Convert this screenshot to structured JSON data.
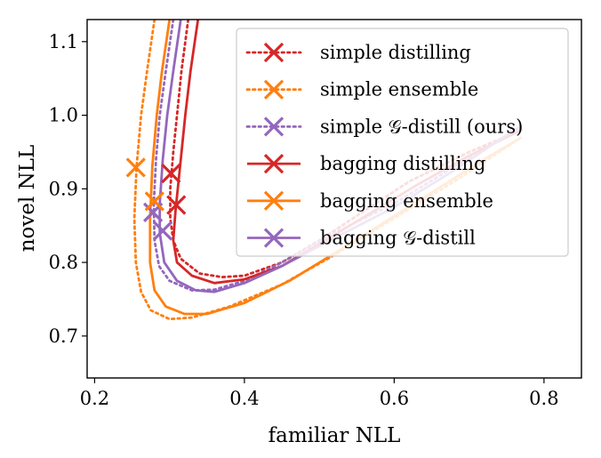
{
  "chart_data": {
    "type": "line",
    "title": "",
    "xlabel": "familiar NLL",
    "ylabel": "novel NLL",
    "xlim": [
      0.19,
      0.85
    ],
    "ylim": [
      0.643,
      1.13
    ],
    "xticks": [
      0.2,
      0.4,
      0.6,
      0.8
    ],
    "xtick_labels": [
      "0.2",
      "0.4",
      "0.6",
      "0.8"
    ],
    "yticks": [
      0.7,
      0.8,
      0.9,
      1.0,
      1.1
    ],
    "ytick_labels": [
      "0.7",
      "0.8",
      "0.9",
      "1.0",
      "1.1"
    ],
    "grid": false,
    "legend_position": "top-right",
    "series": [
      {
        "name": "simple distilling",
        "color": "#d62728",
        "dash": "dotted",
        "points": [
          [
            0.325,
            1.13
          ],
          [
            0.316,
            1.06
          ],
          [
            0.31,
            1.0
          ],
          [
            0.305,
            0.95
          ],
          [
            0.301,
            0.9
          ],
          [
            0.301,
            0.86
          ],
          [
            0.305,
            0.83
          ],
          [
            0.315,
            0.805
          ],
          [
            0.34,
            0.785
          ],
          [
            0.37,
            0.78
          ],
          [
            0.4,
            0.782
          ],
          [
            0.45,
            0.8
          ],
          [
            0.5,
            0.83
          ],
          [
            0.56,
            0.87
          ],
          [
            0.62,
            0.91
          ],
          [
            0.7,
            0.95
          ],
          [
            0.77,
            0.98
          ]
        ],
        "marker": [
          0.302,
          0.921
        ]
      },
      {
        "name": "simple ensemble",
        "color": "#ff7f0e",
        "dash": "dotted",
        "points": [
          [
            0.28,
            1.13
          ],
          [
            0.27,
            1.06
          ],
          [
            0.262,
            1.0
          ],
          [
            0.256,
            0.93
          ],
          [
            0.253,
            0.86
          ],
          [
            0.255,
            0.8
          ],
          [
            0.262,
            0.76
          ],
          [
            0.275,
            0.735
          ],
          [
            0.3,
            0.723
          ],
          [
            0.33,
            0.725
          ],
          [
            0.38,
            0.74
          ],
          [
            0.45,
            0.77
          ],
          [
            0.52,
            0.81
          ],
          [
            0.6,
            0.86
          ],
          [
            0.68,
            0.91
          ],
          [
            0.77,
            0.97
          ]
        ],
        "marker": [
          0.255,
          0.929
        ]
      },
      {
        "name": "simple 𝒢-distill (ours)",
        "color": "#9467bd",
        "dash": "dotted",
        "points": [
          [
            0.305,
            1.13
          ],
          [
            0.295,
            1.06
          ],
          [
            0.287,
            1.0
          ],
          [
            0.282,
            0.94
          ],
          [
            0.279,
            0.88
          ],
          [
            0.28,
            0.83
          ],
          [
            0.286,
            0.795
          ],
          [
            0.3,
            0.775
          ],
          [
            0.33,
            0.762
          ],
          [
            0.36,
            0.763
          ],
          [
            0.4,
            0.775
          ],
          [
            0.45,
            0.8
          ],
          [
            0.52,
            0.84
          ],
          [
            0.6,
            0.88
          ],
          [
            0.68,
            0.93
          ],
          [
            0.77,
            0.985
          ]
        ],
        "marker": [
          0.278,
          0.868
        ]
      },
      {
        "name": "bagging distilling",
        "color": "#d62728",
        "dash": "solid",
        "points": [
          [
            0.338,
            1.13
          ],
          [
            0.328,
            1.06
          ],
          [
            0.321,
            1.0
          ],
          [
            0.314,
            0.93
          ],
          [
            0.308,
            0.87
          ],
          [
            0.305,
            0.83
          ],
          [
            0.31,
            0.8
          ],
          [
            0.33,
            0.782
          ],
          [
            0.36,
            0.772
          ],
          [
            0.4,
            0.777
          ],
          [
            0.45,
            0.795
          ],
          [
            0.5,
            0.825
          ],
          [
            0.56,
            0.862
          ],
          [
            0.63,
            0.905
          ],
          [
            0.7,
            0.945
          ],
          [
            0.77,
            0.98
          ]
        ],
        "marker": [
          0.309,
          0.878
        ]
      },
      {
        "name": "bagging ensemble",
        "color": "#ff7f0e",
        "dash": "solid",
        "points": [
          [
            0.3,
            1.13
          ],
          [
            0.29,
            1.06
          ],
          [
            0.283,
            1.0
          ],
          [
            0.277,
            0.93
          ],
          [
            0.274,
            0.86
          ],
          [
            0.274,
            0.8
          ],
          [
            0.28,
            0.762
          ],
          [
            0.295,
            0.74
          ],
          [
            0.32,
            0.73
          ],
          [
            0.35,
            0.73
          ],
          [
            0.4,
            0.745
          ],
          [
            0.46,
            0.775
          ],
          [
            0.52,
            0.812
          ],
          [
            0.58,
            0.85
          ],
          [
            0.65,
            0.895
          ],
          [
            0.72,
            0.94
          ],
          [
            0.77,
            0.97
          ]
        ],
        "marker": [
          0.28,
          0.883
        ]
      },
      {
        "name": "bagging 𝒢-distill",
        "color": "#9467bd",
        "dash": "solid",
        "points": [
          [
            0.315,
            1.13
          ],
          [
            0.305,
            1.06
          ],
          [
            0.297,
            1.0
          ],
          [
            0.291,
            0.94
          ],
          [
            0.287,
            0.88
          ],
          [
            0.287,
            0.84
          ],
          [
            0.293,
            0.8
          ],
          [
            0.31,
            0.775
          ],
          [
            0.335,
            0.762
          ],
          [
            0.36,
            0.76
          ],
          [
            0.4,
            0.772
          ],
          [
            0.45,
            0.795
          ],
          [
            0.52,
            0.833
          ],
          [
            0.6,
            0.875
          ],
          [
            0.68,
            0.925
          ],
          [
            0.76,
            0.98
          ],
          [
            0.77,
            0.985
          ]
        ],
        "marker": [
          0.291,
          0.843
        ]
      }
    ]
  }
}
